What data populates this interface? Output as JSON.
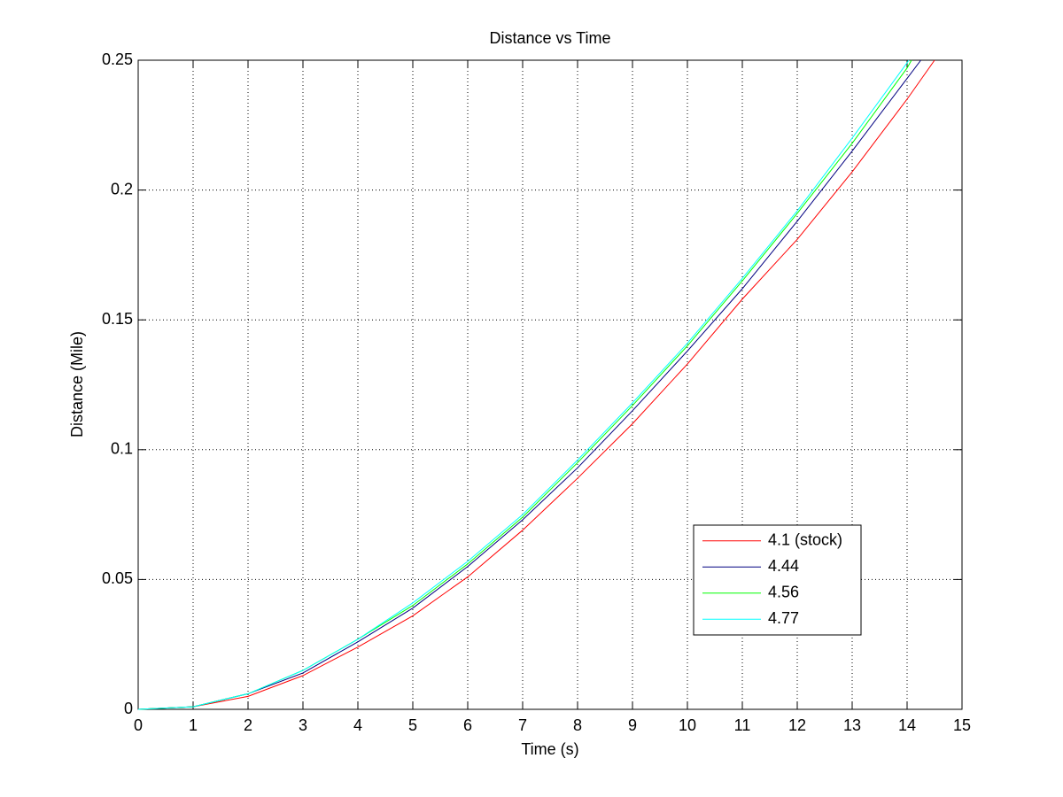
{
  "chart_data": {
    "type": "line",
    "title": "Distance vs Time",
    "x_label": "Time (s)",
    "y_label": "Distance (Mile)",
    "xlim": [
      0,
      15
    ],
    "ylim": [
      0,
      0.25
    ],
    "xticks": [
      0,
      1,
      2,
      3,
      4,
      5,
      6,
      7,
      8,
      9,
      10,
      11,
      12,
      13,
      14,
      15
    ],
    "yticks": [
      0,
      0.05,
      0.1,
      0.15,
      0.2,
      0.25
    ],
    "grid": true,
    "legend_location": "southeast",
    "series": [
      {
        "name": "4.1 (stock)",
        "color": "#ff0000",
        "x": [
          0,
          1,
          2,
          3,
          4,
          5,
          6,
          7,
          8,
          9,
          10,
          11,
          12,
          13,
          14,
          14.5
        ],
        "values": [
          0,
          0.001,
          0.005,
          0.013,
          0.024,
          0.036,
          0.051,
          0.069,
          0.089,
          0.11,
          0.133,
          0.158,
          0.181,
          0.207,
          0.235,
          0.25
        ]
      },
      {
        "name": "4.44",
        "color": "#000080",
        "x": [
          0,
          1,
          2,
          3,
          4,
          5,
          6,
          7,
          8,
          9,
          10,
          11,
          12,
          13,
          14,
          14.25
        ],
        "values": [
          0,
          0.001,
          0.006,
          0.014,
          0.026,
          0.039,
          0.055,
          0.073,
          0.093,
          0.115,
          0.138,
          0.162,
          0.188,
          0.215,
          0.243,
          0.25
        ]
      },
      {
        "name": "4.56",
        "color": "#00ff00",
        "x": [
          0,
          1,
          2,
          3,
          4,
          5,
          6,
          7,
          8,
          9,
          10,
          11,
          12,
          13,
          14,
          14.08
        ],
        "values": [
          0,
          0.001,
          0.006,
          0.015,
          0.027,
          0.04,
          0.056,
          0.074,
          0.095,
          0.117,
          0.14,
          0.165,
          0.191,
          0.218,
          0.247,
          0.25
        ]
      },
      {
        "name": "4.77",
        "color": "#00ffff",
        "x": [
          0,
          1,
          2,
          3,
          4,
          5,
          6,
          7,
          8,
          9,
          10,
          11,
          12,
          13,
          14,
          14.03
        ],
        "values": [
          0,
          0.001,
          0.006,
          0.015,
          0.027,
          0.041,
          0.057,
          0.075,
          0.096,
          0.118,
          0.141,
          0.166,
          0.192,
          0.22,
          0.249,
          0.25
        ]
      }
    ]
  }
}
